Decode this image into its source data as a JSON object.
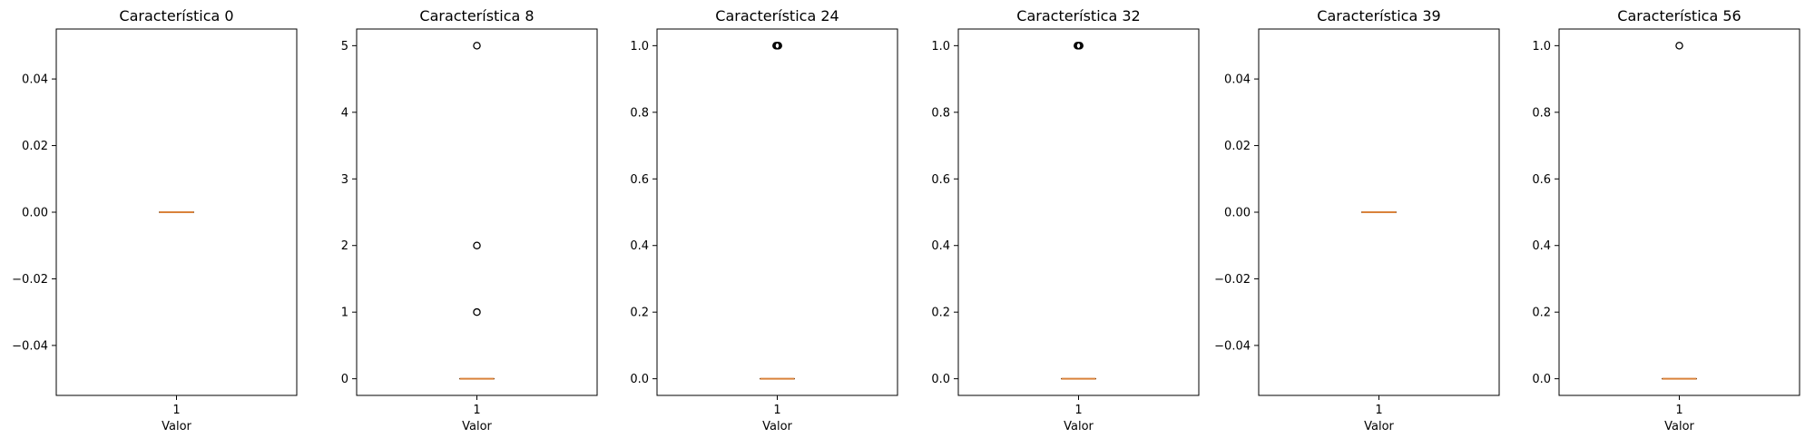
{
  "colors": {
    "median": "#d9823b",
    "box": "#000000",
    "outlier": "#000000",
    "background": "#ffffff"
  },
  "chart_data": [
    {
      "type": "boxplot",
      "title": "Característica 0",
      "xlabel": "Valor",
      "ylabel": "",
      "categories": [
        "1"
      ],
      "ylim": [
        -0.055,
        0.055
      ],
      "yticks": [
        -0.04,
        -0.02,
        0.0,
        0.02,
        0.04
      ],
      "ytick_labels": [
        "−0.04",
        "−0.02",
        "0.00",
        "0.02",
        "0.04"
      ],
      "box": {
        "q1": 0,
        "median": 0,
        "q3": 0,
        "whisker_low": 0,
        "whisker_high": 0
      },
      "outliers": []
    },
    {
      "type": "boxplot",
      "title": "Característica 8",
      "xlabel": "Valor",
      "ylabel": "",
      "categories": [
        "1"
      ],
      "ylim": [
        -0.25,
        5.25
      ],
      "yticks": [
        0,
        1,
        2,
        3,
        4,
        5
      ],
      "ytick_labels": [
        "0",
        "1",
        "2",
        "3",
        "4",
        "5"
      ],
      "box": {
        "q1": 0,
        "median": 0,
        "q3": 0,
        "whisker_low": 0,
        "whisker_high": 0
      },
      "outliers": [
        1,
        2,
        5
      ]
    },
    {
      "type": "boxplot",
      "title": "Característica 24",
      "xlabel": "Valor",
      "ylabel": "",
      "categories": [
        "1"
      ],
      "ylim": [
        -0.05,
        1.05
      ],
      "yticks": [
        0.0,
        0.2,
        0.4,
        0.6,
        0.8,
        1.0
      ],
      "ytick_labels": [
        "0.0",
        "0.2",
        "0.4",
        "0.6",
        "0.8",
        "1.0"
      ],
      "box": {
        "q1": 0,
        "median": 0,
        "q3": 0,
        "whisker_low": 0,
        "whisker_high": 0
      },
      "outliers": [
        1,
        1,
        1
      ]
    },
    {
      "type": "boxplot",
      "title": "Característica 32",
      "xlabel": "Valor",
      "ylabel": "",
      "categories": [
        "1"
      ],
      "ylim": [
        -0.05,
        1.05
      ],
      "yticks": [
        0.0,
        0.2,
        0.4,
        0.6,
        0.8,
        1.0
      ],
      "ytick_labels": [
        "0.0",
        "0.2",
        "0.4",
        "0.6",
        "0.8",
        "1.0"
      ],
      "box": {
        "q1": 0,
        "median": 0,
        "q3": 0,
        "whisker_low": 0,
        "whisker_high": 0
      },
      "outliers": [
        1,
        1,
        1
      ]
    },
    {
      "type": "boxplot",
      "title": "Característica 39",
      "xlabel": "Valor",
      "ylabel": "",
      "categories": [
        "1"
      ],
      "ylim": [
        -0.055,
        0.055
      ],
      "yticks": [
        -0.04,
        -0.02,
        0.0,
        0.02,
        0.04
      ],
      "ytick_labels": [
        "−0.04",
        "−0.02",
        "0.00",
        "0.02",
        "0.04"
      ],
      "box": {
        "q1": 0,
        "median": 0,
        "q3": 0,
        "whisker_low": 0,
        "whisker_high": 0
      },
      "outliers": []
    },
    {
      "type": "boxplot",
      "title": "Característica 56",
      "xlabel": "Valor",
      "ylabel": "",
      "categories": [
        "1"
      ],
      "ylim": [
        -0.05,
        1.05
      ],
      "yticks": [
        0.0,
        0.2,
        0.4,
        0.6,
        0.8,
        1.0
      ],
      "ytick_labels": [
        "0.0",
        "0.2",
        "0.4",
        "0.6",
        "0.8",
        "1.0"
      ],
      "box": {
        "q1": 0,
        "median": 0,
        "q3": 0,
        "whisker_low": 0,
        "whisker_high": 0
      },
      "outliers": [
        1
      ]
    }
  ]
}
